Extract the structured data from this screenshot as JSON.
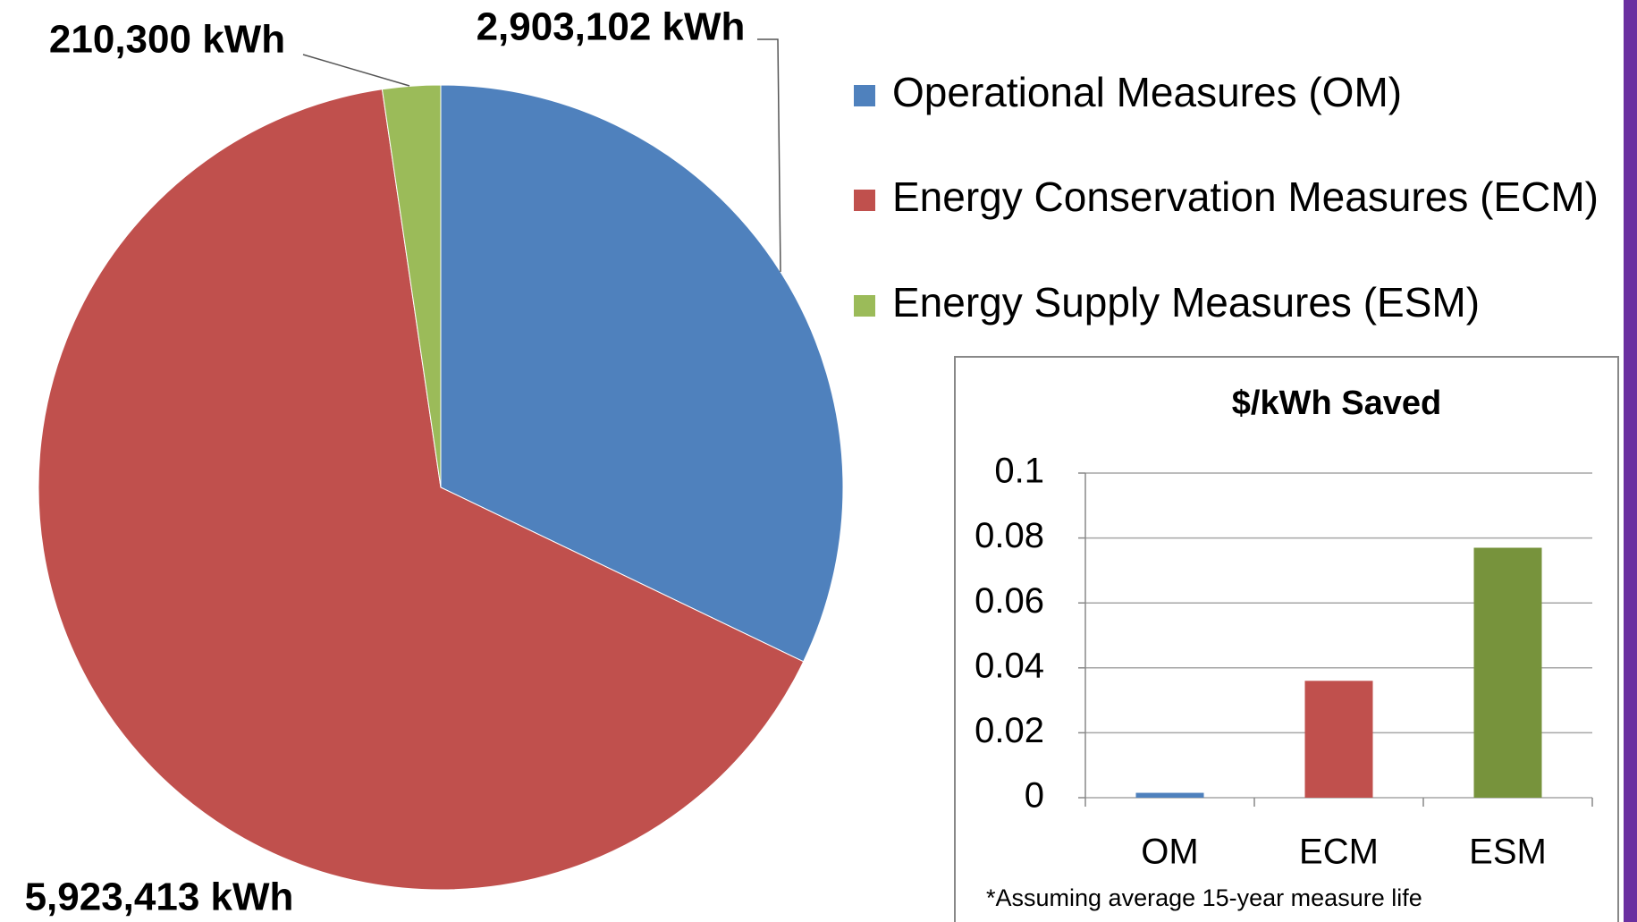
{
  "chart_data": [
    {
      "type": "pie",
      "categories": [
        "Operational Measures (OM)",
        "Energy Conservation Measures (ECM)",
        "Energy Supply Measures (ESM)"
      ],
      "values": [
        2903102,
        5923413,
        210300
      ],
      "value_labels": [
        "2,903,102 kWh",
        "5,923,413 kWh",
        "210,300 kWh"
      ],
      "colors": [
        "#4f81bd",
        "#c0504d",
        "#9bbb59"
      ]
    },
    {
      "type": "bar",
      "title": "$/kWh Saved",
      "categories": [
        "OM",
        "ECM",
        "ESM"
      ],
      "values": [
        0.0015,
        0.036,
        0.077
      ],
      "colors": [
        "#4f81bd",
        "#c0504d",
        "#77933c"
      ],
      "ylim": [
        0,
        0.1
      ],
      "yticks": [
        0,
        0.02,
        0.04,
        0.06,
        0.08,
        0.1
      ],
      "grid": true,
      "note": "*Assuming average 15-year measure life"
    }
  ]
}
